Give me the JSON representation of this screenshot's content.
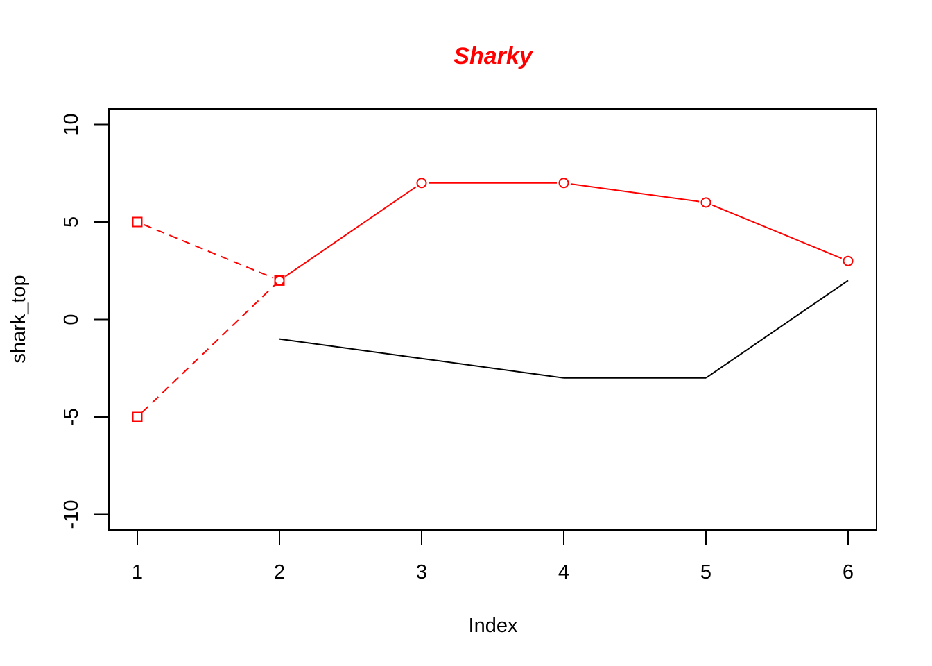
{
  "chart_data": {
    "type": "line",
    "title": "Sharky",
    "title_color": "#ff0000",
    "xlabel": "Index",
    "ylabel": "shark_top",
    "xlim": [
      0.8,
      6.2
    ],
    "ylim": [
      -10.8,
      10.8
    ],
    "x_ticks": [
      "1",
      "2",
      "3",
      "4",
      "5",
      "6"
    ],
    "y_ticks": [
      "-10",
      "-5",
      "0",
      "5",
      "10"
    ],
    "grid": false,
    "legend": "none",
    "series": [
      {
        "style": "solid",
        "color": "#000000",
        "marker": "none",
        "points": [
          [
            2,
            -1
          ],
          [
            3,
            -2
          ],
          [
            4,
            -3
          ],
          [
            5,
            -3
          ],
          [
            6,
            2
          ]
        ]
      },
      {
        "style": "solid",
        "color": "#ff0000",
        "marker": "circle",
        "points": [
          [
            2,
            2
          ],
          [
            3,
            7
          ],
          [
            4,
            7
          ],
          [
            5,
            6
          ],
          [
            6,
            3
          ]
        ]
      },
      {
        "style": "dashed",
        "color": "#ff0000",
        "marker": "square",
        "points": [
          [
            1,
            5
          ],
          [
            2,
            2
          ]
        ]
      },
      {
        "style": "dashed",
        "color": "#ff0000",
        "marker": "square",
        "points": [
          [
            1,
            -5
          ],
          [
            2,
            2
          ]
        ]
      }
    ]
  }
}
